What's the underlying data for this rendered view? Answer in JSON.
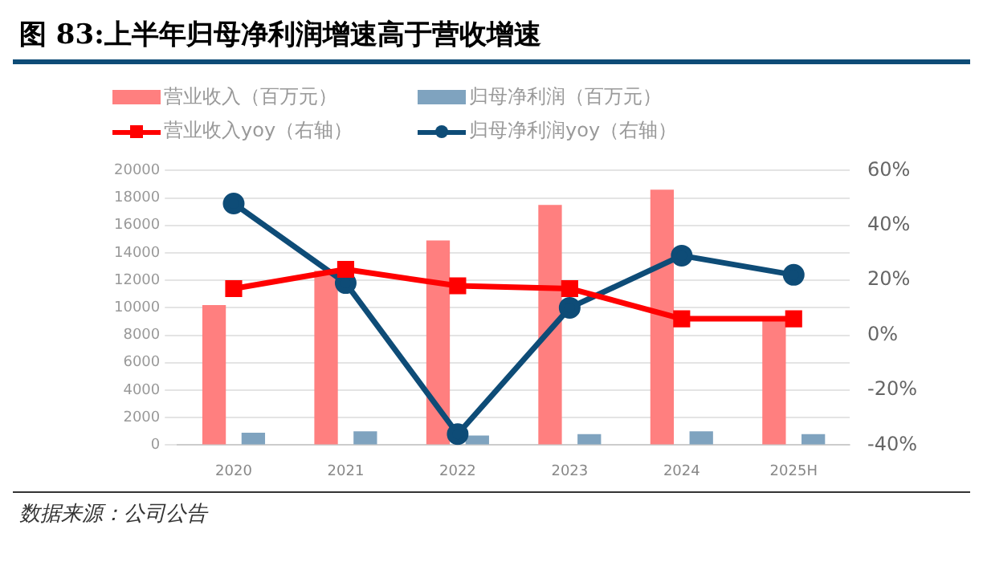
{
  "chart_data": {
    "type": "bar",
    "title": "图 83:上半年归母净利润增速高于营收增速",
    "categories": [
      "2020",
      "2021",
      "2022",
      "2023",
      "2024",
      "2025H"
    ],
    "series": [
      {
        "name": "营业收入（百万元）",
        "color": "#ff7f7f",
        "values": [
          10200,
          12700,
          14900,
          17500,
          18600,
          9100
        ]
      },
      {
        "name": "归母净利润（百万元）",
        "color": "#7fa3bf",
        "values": [
          900,
          1000,
          700,
          800,
          1000,
          800
        ]
      },
      {
        "name": "营业收入yoy（右轴）",
        "type": "line",
        "axis": "y2",
        "marker": "square",
        "color": "#ff0000",
        "values": [
          17,
          24,
          18,
          17,
          6,
          6
        ]
      },
      {
        "name": "归母净利润yoy（右轴）",
        "type": "line",
        "axis": "y2",
        "marker": "circle",
        "color": "#0e4c77",
        "values": [
          48,
          19,
          -36,
          10,
          29,
          22
        ]
      }
    ],
    "ylim": [
      0,
      20000
    ],
    "yticks": [
      0,
      2000,
      4000,
      6000,
      8000,
      10000,
      12000,
      14000,
      16000,
      18000,
      20000
    ],
    "y2lim": [
      -40,
      60
    ],
    "y2ticks": [
      {
        "value": -40,
        "label": "-40%"
      },
      {
        "value": -20,
        "label": "-20%"
      },
      {
        "value": 0,
        "label": "0%"
      },
      {
        "value": 20,
        "label": "20%"
      },
      {
        "value": 40,
        "label": "40%"
      },
      {
        "value": 60,
        "label": "60%"
      }
    ],
    "grid": "y",
    "legend": "top",
    "annotations": [
      "数据来源：公司公告"
    ]
  }
}
